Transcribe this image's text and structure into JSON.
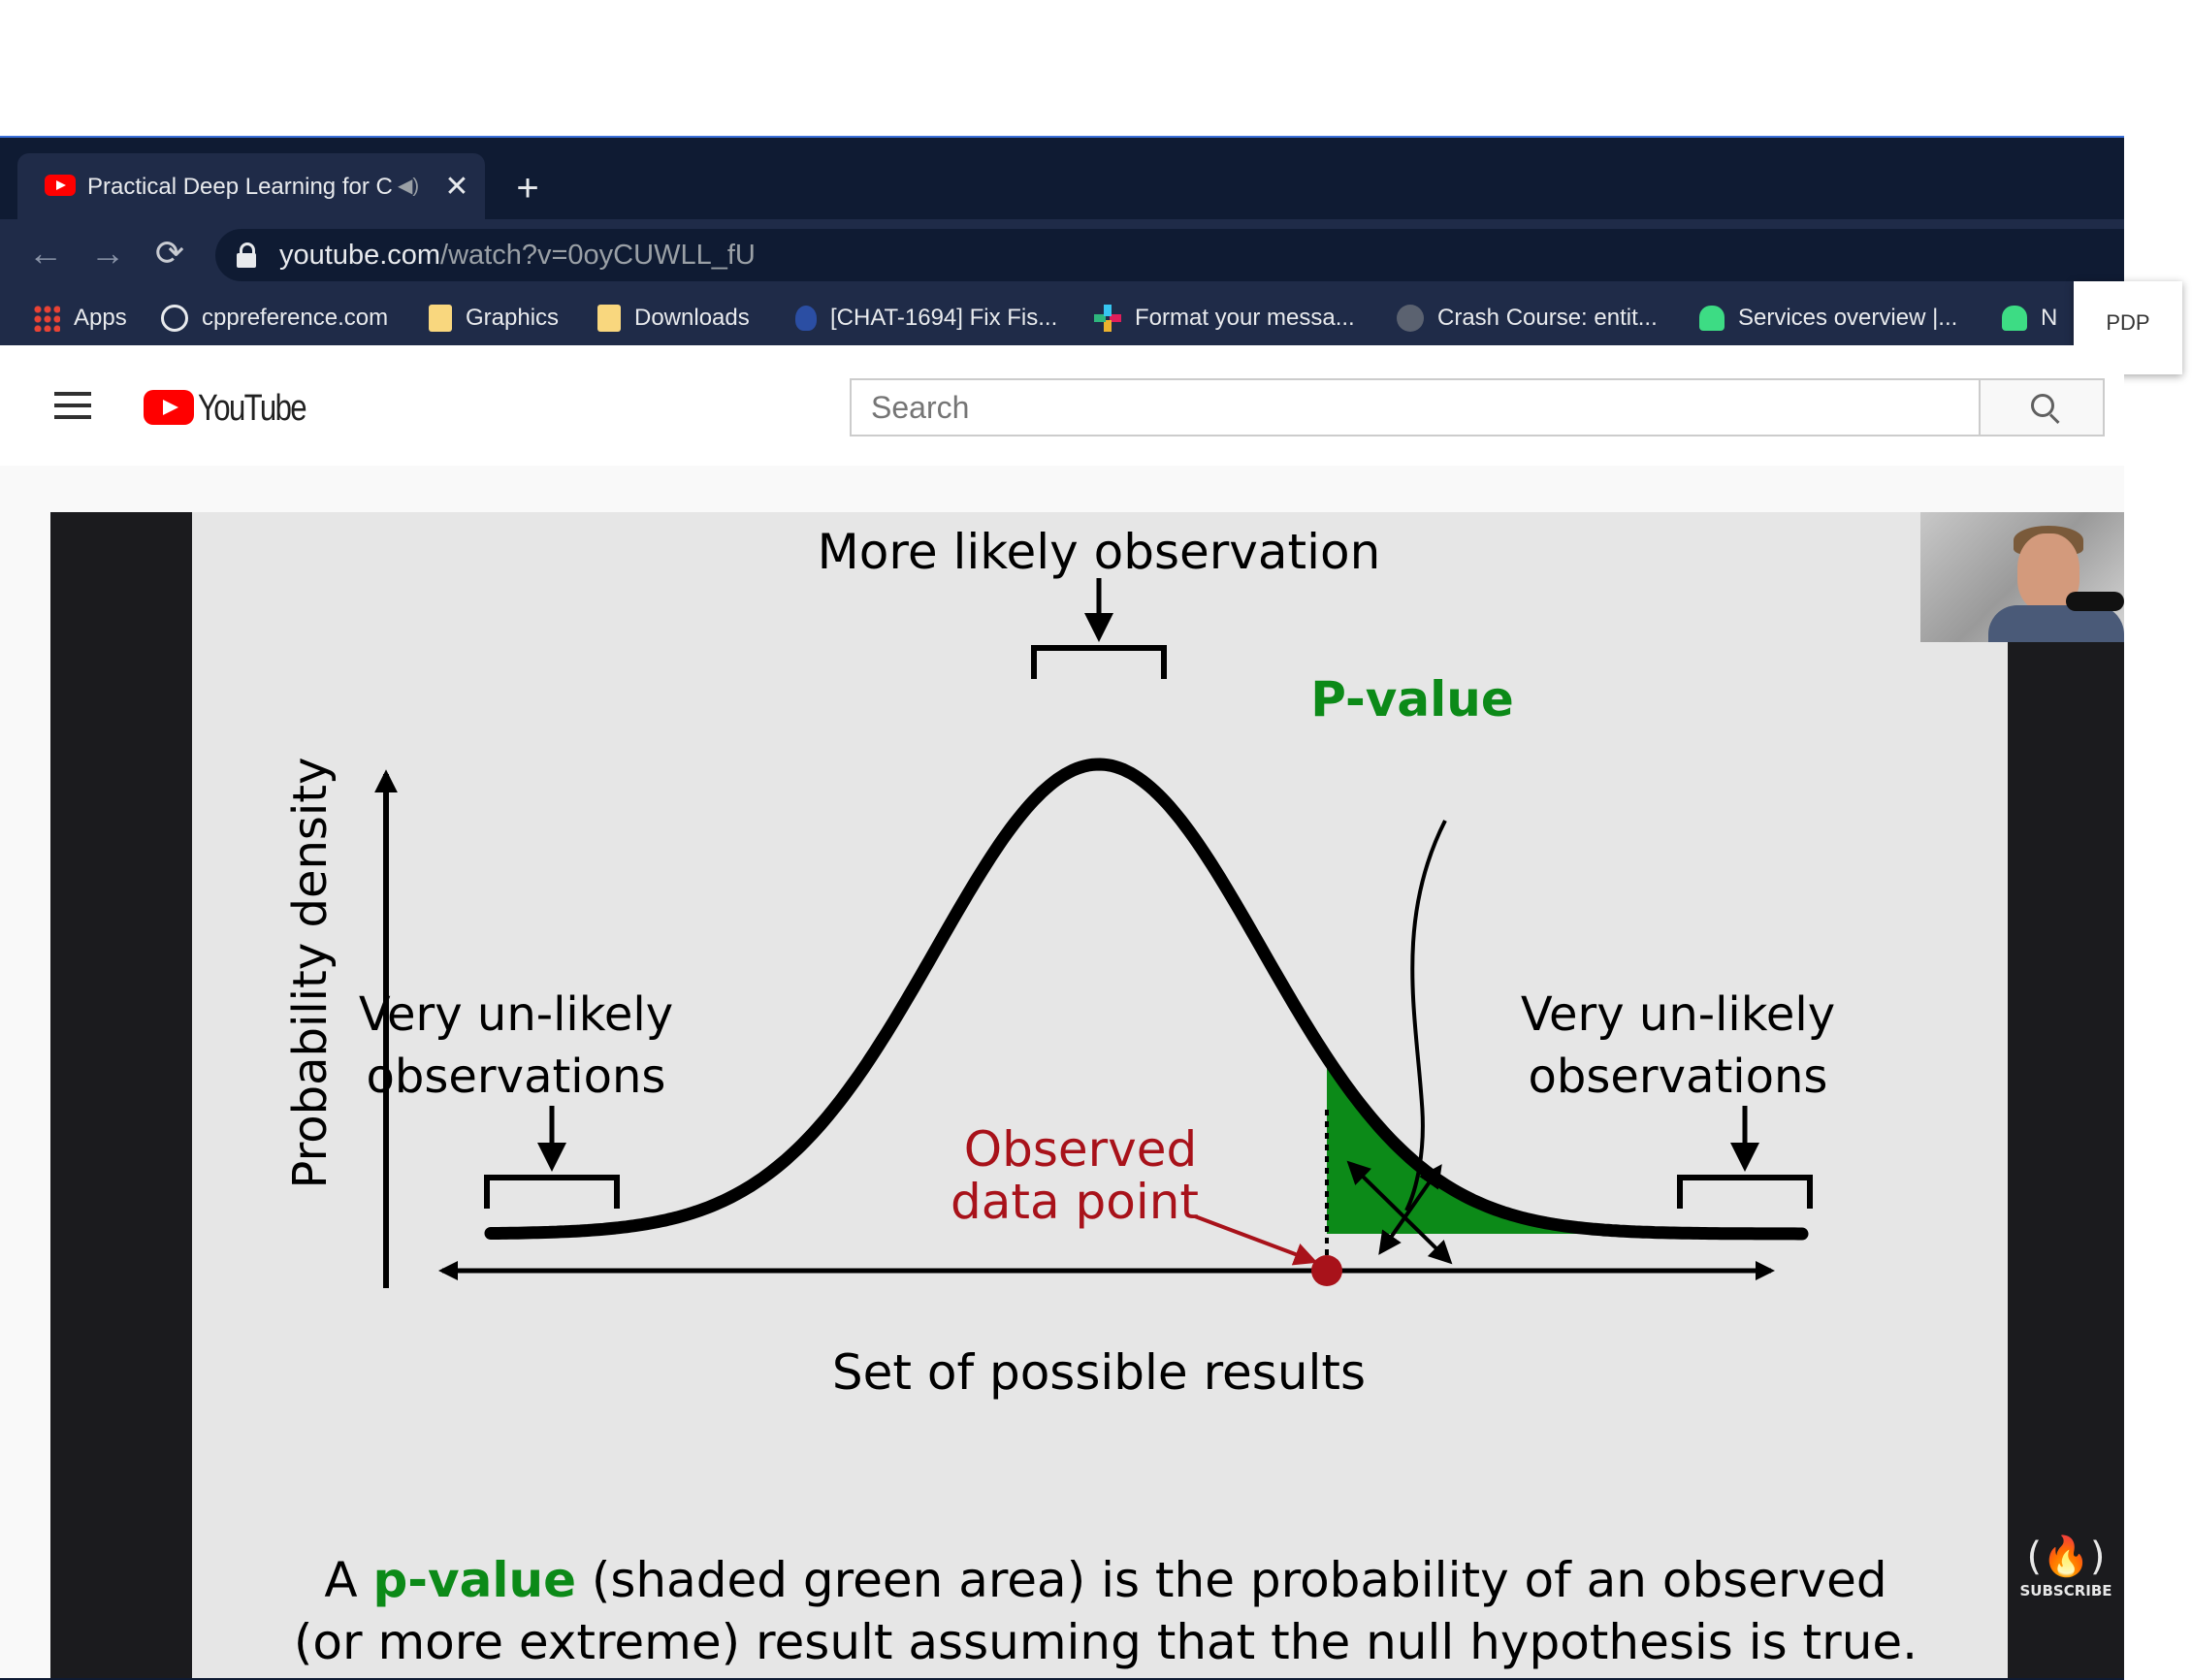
{
  "browser": {
    "tab": {
      "title": "Practical Deep Learning for C",
      "close_glyph": "✕"
    },
    "new_tab_glyph": "+",
    "nav": {
      "back": "←",
      "forward": "→",
      "reload": "⟳"
    },
    "address": {
      "host": "youtube.com",
      "path": "/watch?v=0oyCUWLL_fU"
    },
    "bookmarks": [
      {
        "label": "Apps",
        "icon": "apps-grid-icon"
      },
      {
        "label": "cppreference.com",
        "icon": "cppreference-icon"
      },
      {
        "label": "Graphics",
        "icon": "folder-icon"
      },
      {
        "label": "Downloads",
        "icon": "folder-icon"
      },
      {
        "label": "[CHAT-1694] Fix Fis...",
        "icon": "jira-bug-icon"
      },
      {
        "label": "Format your messa...",
        "icon": "slack-icon"
      },
      {
        "label": "Crash Course: entit...",
        "icon": "github-icon"
      },
      {
        "label": "Services overview |...",
        "icon": "android-icon"
      },
      {
        "label": "N",
        "icon": "android-icon"
      }
    ],
    "extension_popup": "PDP"
  },
  "youtube": {
    "logo_text": "YouTube",
    "search_placeholder": "Search"
  },
  "slide": {
    "top_label": "More likely observation",
    "ylabel": "Probability density",
    "xlabel": "Set of possible results",
    "pvalue_label": "P-value",
    "left_tail": [
      "Very un-likely",
      "observations"
    ],
    "right_tail": [
      "Very un-likely",
      "observations"
    ],
    "observed": [
      "Observed",
      "data point"
    ],
    "caption_line1_pre": "A ",
    "caption_line1_hl": "p-value",
    "caption_line1_post": " (shaded green area) is the probability of an observed",
    "caption_line2": "(or more extreme) result assuming that the null hypothesis is true.",
    "colors": {
      "green": "#0c8a18",
      "red": "#a8121a",
      "curve": "#000000"
    }
  },
  "subscribe": {
    "glyph": "(🔥)",
    "label": "SUBSCRIBE"
  }
}
